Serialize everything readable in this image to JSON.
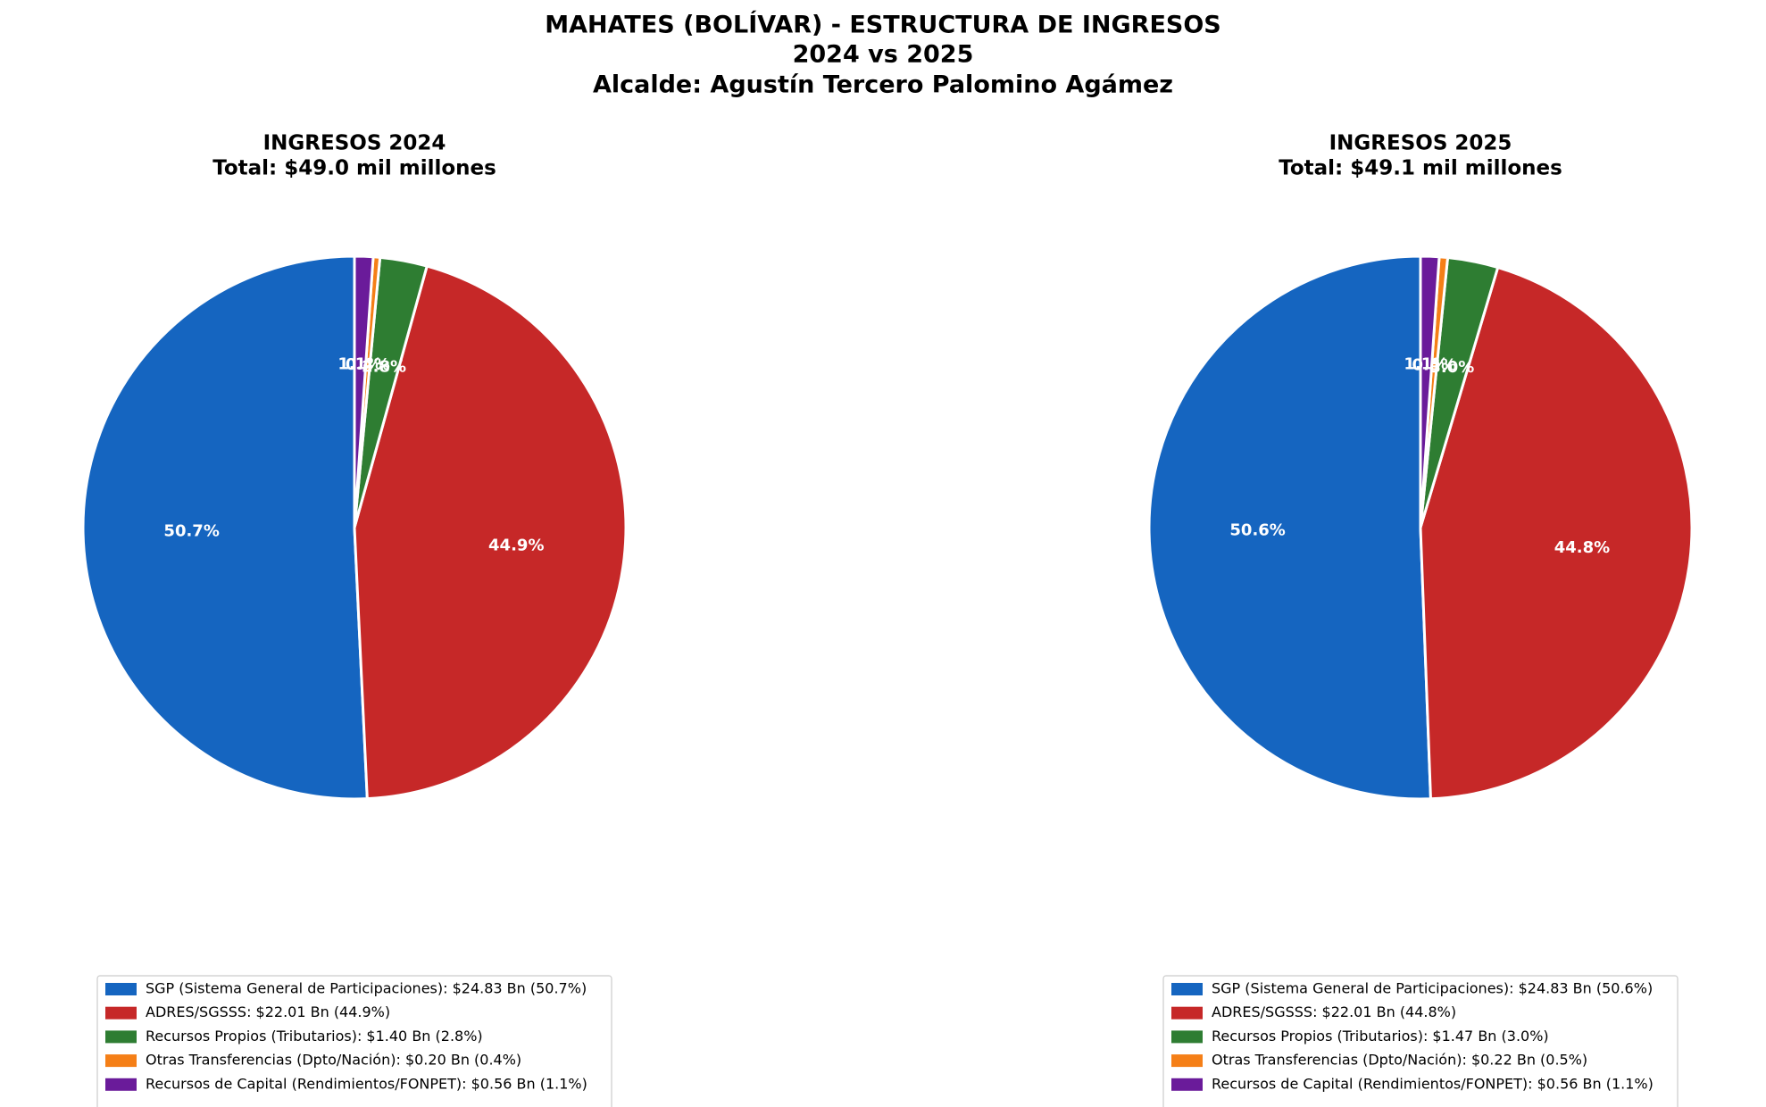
{
  "page_title": [
    "MAHATES (BOLÍVAR) - ESTRUCTURA DE INGRESOS",
    "2024 vs 2025",
    "Alcalde: Agustín Tercero Palomino Agámez"
  ],
  "chart_data": [
    {
      "type": "pie",
      "title": "INGRESOS 2024",
      "subtitle": "Total: $49.0 mil millones",
      "start_angle": 90,
      "direction": "counterclockwise",
      "categories": [
        "SGP (Sistema General de Participaciones): $24.83 Bn (50.7%)",
        "ADRES/SGSSS: $22.01 Bn (44.9%)",
        "Recursos Propios (Tributarios): $1.40 Bn (2.8%)",
        "Otras Transferencias (Dpto/Nación): $0.20 Bn (0.4%)",
        "Recursos de Capital (Rendimientos/FONPET): $0.56 Bn (1.1%)"
      ],
      "values": [
        50.7,
        44.9,
        2.8,
        0.4,
        1.1
      ],
      "value_labels": [
        "50.7%",
        "44.9%",
        "2.8%",
        "0.4%",
        "1.1%"
      ],
      "colors": [
        "#1565c0",
        "#c62828",
        "#2e7d32",
        "#f57f17",
        "#6a1b9a"
      ],
      "legend": "bottom"
    },
    {
      "type": "pie",
      "title": "INGRESOS 2025",
      "subtitle": "Total: $49.1 mil millones",
      "start_angle": 90,
      "direction": "counterclockwise",
      "categories": [
        "SGP (Sistema General de Participaciones): $24.83 Bn (50.6%)",
        "ADRES/SGSSS: $22.01 Bn (44.8%)",
        "Recursos Propios (Tributarios): $1.47 Bn (3.0%)",
        "Otras Transferencias (Dpto/Nación): $0.22 Bn (0.5%)",
        "Recursos de Capital (Rendimientos/FONPET): $0.56 Bn (1.1%)"
      ],
      "values": [
        50.6,
        44.8,
        3.0,
        0.5,
        1.1
      ],
      "value_labels": [
        "50.6%",
        "44.8%",
        "3.0%",
        "0.5%",
        "1.1%"
      ],
      "colors": [
        "#1565c0",
        "#c62828",
        "#2e7d32",
        "#f57f17",
        "#6a1b9a"
      ],
      "legend": "bottom"
    }
  ]
}
